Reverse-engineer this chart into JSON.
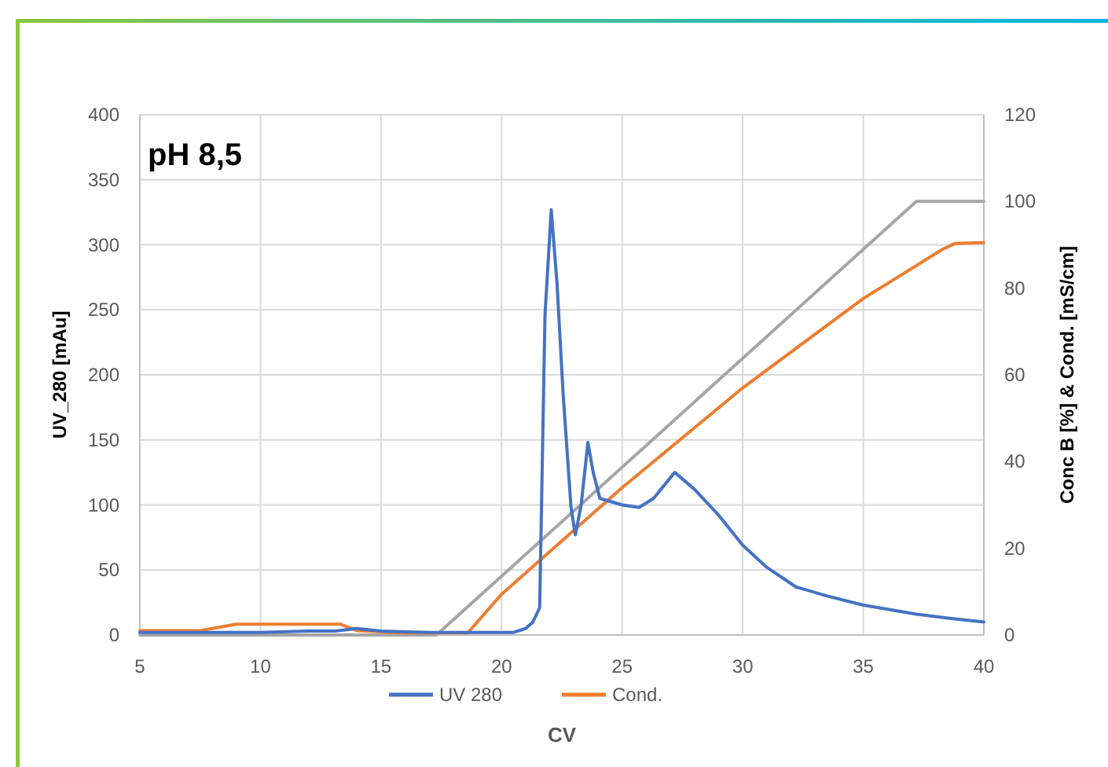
{
  "chart_data": {
    "type": "line",
    "title": "pH 8,5",
    "xlabel": "CV",
    "ylabel": "UV_280 [mAu]",
    "y2label": "Conc B [%] & Cond. [mS/cm]",
    "xlim": [
      5,
      40
    ],
    "xticks": [
      5,
      10,
      15,
      20,
      25,
      30,
      35,
      40
    ],
    "ylim": [
      0,
      400
    ],
    "yticks": [
      0,
      50,
      100,
      150,
      200,
      250,
      300,
      350,
      400
    ],
    "y2lim": [
      0,
      120
    ],
    "y2ticks": [
      0,
      20,
      40,
      60,
      80,
      100,
      120
    ],
    "grid": true,
    "legend": "bottom",
    "marker": "none",
    "line_style": "solid",
    "series": [
      {
        "name": "UV 280",
        "color": "#4472c4",
        "x": [
          5,
          8,
          10,
          12,
          13.1,
          14,
          15,
          17,
          19,
          20.5,
          21,
          21.3,
          21.58,
          21.8,
          22.06,
          22.3,
          22.55,
          22.88,
          23.06,
          23.3,
          23.58,
          23.8,
          24.08,
          25,
          25.7,
          26.3,
          27.18,
          28,
          28.96,
          30,
          31,
          32.2,
          33.5,
          35,
          37.2,
          38.5,
          40
        ],
        "values": [
          2,
          2,
          2,
          3,
          3,
          5,
          3,
          2,
          2,
          2,
          5,
          10,
          21,
          246,
          327,
          270,
          186,
          98,
          77,
          100,
          148,
          125,
          105,
          100,
          98,
          105,
          125,
          112,
          93,
          69,
          52,
          37,
          30,
          23,
          16,
          13,
          10
        ]
      },
      {
        "name": "Cond.",
        "color": "#ed7d31",
        "axis": "y2",
        "x": [
          5,
          6.5,
          7.5,
          8.5,
          9,
          13.3,
          14,
          16,
          18.6,
          20,
          25,
          30,
          35,
          38.3,
          38.8,
          40
        ],
        "values": [
          1,
          1,
          1,
          2,
          2.5,
          2.5,
          1,
          0.5,
          0.5,
          9.4,
          34,
          57,
          77.6,
          89,
          90.3,
          90.5
        ]
      },
      {
        "color": "#a5a5a5",
        "axis": "y2",
        "x": [
          5,
          17.3,
          37.2,
          40
        ],
        "values": [
          0,
          0,
          100,
          100
        ]
      }
    ]
  }
}
